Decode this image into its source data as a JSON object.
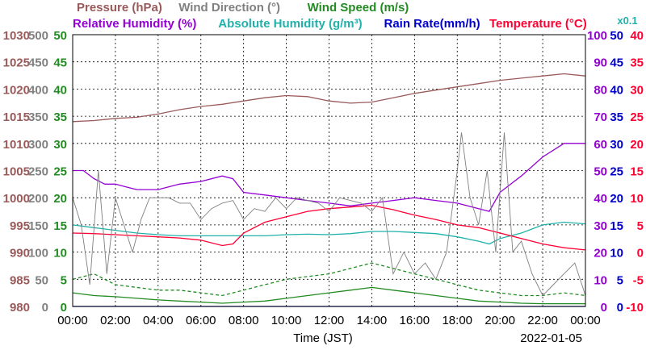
{
  "chart_data": {
    "type": "line",
    "title_row1": [
      {
        "text": "Pressure (hPa)",
        "color": "#9a5a5a"
      },
      {
        "text": "Wind Direction (°)",
        "color": "#808080"
      },
      {
        "text": "Wind Speed (m/s)",
        "color": "#228b22"
      }
    ],
    "title_row2": [
      {
        "text": "Relative Humidity (%)",
        "color": "#9400d3"
      },
      {
        "text": "Absolute Humidity (g/m³)",
        "color": "#20b2aa"
      },
      {
        "text": "Rain Rate(mm/h)",
        "color": "#0000cd"
      },
      {
        "text": "Temperature (°C)",
        "color": "#ff0033"
      }
    ],
    "x_multiplier_label": "x0.1",
    "xlabel": "Time (JST)",
    "date": "2022-01-05",
    "x_ticks": [
      "00:00",
      "02:00",
      "04:00",
      "06:00",
      "08:00",
      "10:00",
      "12:00",
      "14:00",
      "16:00",
      "18:00",
      "20:00",
      "22:00",
      "00:00"
    ],
    "xlim_hours": [
      0,
      24
    ],
    "grid": true,
    "axes": {
      "pressure": {
        "ticks": [
          "1030",
          "1025",
          "1020",
          "1015",
          "1010",
          "1005",
          "1000",
          "995",
          "990",
          "985",
          "980"
        ],
        "range": [
          980,
          1030
        ],
        "color": "#9a5a5a"
      },
      "wind_direction": {
        "ticks": [
          "500",
          "450",
          "400",
          "350",
          "300",
          "250",
          "200",
          "150",
          "100",
          "50",
          "0"
        ],
        "range": [
          0,
          500
        ],
        "color": "#808080"
      },
      "wind_speed": {
        "ticks": [
          "50",
          "45",
          "40",
          "35",
          "30",
          "25",
          "20",
          "15",
          "10",
          "5",
          "0"
        ],
        "range": [
          0,
          50
        ],
        "color": "#228b22"
      },
      "relative_humidity": {
        "ticks": [
          "100",
          "90",
          "80",
          "70",
          "60",
          "50",
          "40",
          "30",
          "20",
          "10",
          "0"
        ],
        "range": [
          0,
          100
        ],
        "color": "#9400d3"
      },
      "rain_rate": {
        "ticks": [
          "50",
          "45",
          "40",
          "35",
          "30",
          "25",
          "20",
          "15",
          "10",
          "5",
          "0"
        ],
        "range": [
          0,
          50
        ],
        "color": "#0000cd"
      },
      "temperature": {
        "ticks": [
          "40",
          "35",
          "30",
          "25",
          "20",
          "15",
          "10",
          "5",
          "0",
          "-5",
          "-10"
        ],
        "range": [
          -10,
          40
        ],
        "color": "#ff0033"
      }
    },
    "series": [
      {
        "name": "Pressure (hPa)",
        "axis": "pressure",
        "color": "#9a5a5a",
        "x": [
          0,
          1,
          2,
          3,
          4,
          5,
          6,
          7,
          8,
          9,
          10,
          11,
          12,
          13,
          14,
          15,
          16,
          17,
          18,
          19,
          20,
          21,
          22,
          23,
          24
        ],
        "y": [
          1014.0,
          1014.2,
          1014.6,
          1014.8,
          1015.4,
          1016.2,
          1016.8,
          1017.2,
          1017.8,
          1018.4,
          1018.8,
          1018.6,
          1017.8,
          1017.4,
          1017.6,
          1018.4,
          1019.2,
          1019.8,
          1020.4,
          1021.0,
          1021.6,
          1022.0,
          1022.4,
          1022.8,
          1022.4
        ]
      },
      {
        "name": "Relative Humidity (%)",
        "axis": "relative_humidity",
        "color": "#9400d3",
        "x": [
          0,
          0.5,
          1,
          1.5,
          2,
          2.5,
          3,
          4,
          5,
          6,
          7,
          7.5,
          8,
          9,
          10,
          11,
          12,
          13,
          14,
          15,
          16,
          17,
          18,
          19,
          19.5,
          20,
          21,
          22,
          23,
          24
        ],
        "y": [
          50,
          50,
          47,
          45,
          45,
          44,
          43,
          43,
          45,
          46,
          48,
          47,
          42,
          41,
          40,
          39,
          38,
          37,
          38,
          39,
          40,
          39,
          38,
          36,
          35,
          42,
          48,
          55,
          60,
          60
        ]
      },
      {
        "name": "Absolute Humidity (g/m³)",
        "axis": "rain_rate",
        "color": "#20b2aa",
        "x": [
          0,
          1,
          2,
          3,
          4,
          5,
          6,
          7,
          8,
          9,
          10,
          11,
          12,
          13,
          14,
          15,
          16,
          17,
          18,
          19,
          19.5,
          20,
          21,
          22,
          23,
          24
        ],
        "y": [
          15,
          14.5,
          14,
          13.5,
          13.2,
          13,
          13,
          13,
          13,
          13,
          13.2,
          13.3,
          13.2,
          13.4,
          13.8,
          13.8,
          13.6,
          13.4,
          12.8,
          12,
          11.5,
          12.5,
          13.5,
          15,
          15.5,
          15.2
        ]
      },
      {
        "name": "Temperature (°C)",
        "axis": "temperature",
        "color": "#ff0033",
        "x": [
          0,
          1,
          2,
          3,
          4,
          5,
          6,
          7,
          7.5,
          8,
          9,
          10,
          11,
          12,
          13,
          14,
          15,
          16,
          17,
          18,
          19,
          20,
          21,
          22,
          23,
          24
        ],
        "y": [
          3.5,
          3.4,
          3.2,
          3.0,
          2.8,
          2.6,
          2.2,
          1.2,
          1.5,
          3.5,
          5.5,
          6.5,
          7.5,
          8.0,
          8.3,
          8.6,
          7.8,
          6.8,
          6.0,
          5.0,
          4.5,
          3.5,
          2.5,
          1.5,
          0.8,
          0.4
        ]
      },
      {
        "name": "Wind Speed (m/s)",
        "axis": "wind_speed",
        "color": "#228b22",
        "x": [
          0,
          1,
          2,
          3,
          4,
          5,
          6,
          7,
          8,
          9,
          10,
          11,
          12,
          13,
          14,
          15,
          16,
          17,
          18,
          19,
          20,
          21,
          22,
          23,
          24
        ],
        "y": [
          2.5,
          2.0,
          1.8,
          1.5,
          1.2,
          1.0,
          0.8,
          0.6,
          0.8,
          1.0,
          1.5,
          2.0,
          2.5,
          3.0,
          3.5,
          3.0,
          2.5,
          2.0,
          1.5,
          1.0,
          0.8,
          0.6,
          0.5,
          0.5,
          0.5
        ]
      },
      {
        "name": "Wind Speed Max (m/s)",
        "axis": "wind_speed",
        "color": "#228b22",
        "dashed": true,
        "x": [
          0,
          1,
          2,
          3,
          4,
          5,
          6,
          7,
          8,
          9,
          10,
          11,
          12,
          13,
          14,
          15,
          16,
          17,
          18,
          19,
          20,
          21,
          22,
          23,
          24
        ],
        "y": [
          5,
          6,
          4,
          3.5,
          3,
          3,
          2.5,
          2,
          3,
          4,
          5,
          5.5,
          6,
          7,
          8,
          7,
          6,
          5,
          4,
          3,
          2.5,
          2,
          2,
          2.5,
          2
        ]
      },
      {
        "name": "Wind Direction (°)",
        "axis": "wind_direction",
        "color": "#808080",
        "x": [
          0,
          0.4,
          0.8,
          1.2,
          1.6,
          2,
          2.4,
          2.8,
          3.2,
          3.6,
          4,
          4.5,
          5,
          5.5,
          6,
          6.5,
          7,
          7.5,
          8,
          8.5,
          9,
          9.5,
          10,
          10.5,
          11,
          11.5,
          12,
          12.5,
          13,
          13.5,
          14,
          14.5,
          15,
          15.5,
          16,
          16.5,
          17,
          17.5,
          18,
          18.2,
          18.6,
          19,
          19.4,
          19.8,
          20.2,
          20.6,
          21,
          21.5,
          22,
          22.5,
          23,
          23.5,
          24
        ],
        "y": [
          200,
          150,
          40,
          250,
          60,
          200,
          150,
          100,
          160,
          200,
          200,
          200,
          190,
          190,
          160,
          180,
          190,
          195,
          160,
          180,
          175,
          200,
          180,
          200,
          195,
          190,
          175,
          200,
          195,
          190,
          175,
          200,
          60,
          100,
          60,
          80,
          50,
          100,
          250,
          320,
          200,
          150,
          250,
          100,
          320,
          100,
          120,
          60,
          20,
          40,
          60,
          80,
          20
        ]
      },
      {
        "name": "Rain Rate(mm/h)",
        "axis": "rain_rate",
        "color": "#0000cd",
        "x": [
          0,
          24
        ],
        "y": [
          0,
          0
        ]
      }
    ]
  }
}
